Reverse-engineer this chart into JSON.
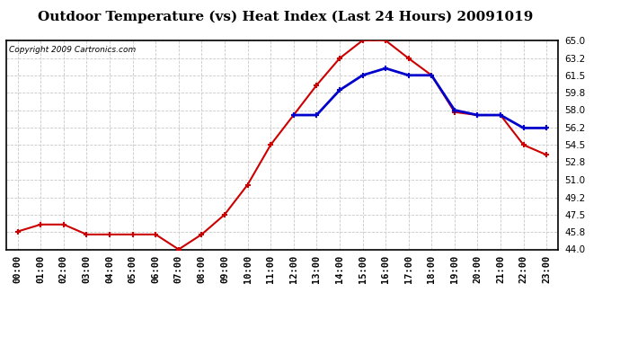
{
  "title": "Outdoor Temperature (vs) Heat Index (Last 24 Hours) 20091019",
  "copyright": "Copyright 2009 Cartronics.com",
  "x_labels": [
    "00:00",
    "01:00",
    "02:00",
    "03:00",
    "04:00",
    "05:00",
    "06:00",
    "07:00",
    "08:00",
    "09:00",
    "10:00",
    "11:00",
    "12:00",
    "13:00",
    "14:00",
    "15:00",
    "16:00",
    "17:00",
    "18:00",
    "19:00",
    "20:00",
    "21:00",
    "22:00",
    "23:00"
  ],
  "temp_data": [
    45.8,
    46.5,
    46.5,
    45.5,
    45.5,
    45.5,
    45.5,
    44.0,
    45.5,
    47.5,
    50.5,
    54.5,
    57.5,
    60.5,
    63.2,
    65.0,
    65.0,
    63.2,
    61.5,
    57.8,
    57.5,
    57.5,
    54.5,
    53.5
  ],
  "heat_data": [
    null,
    null,
    null,
    null,
    null,
    null,
    null,
    null,
    null,
    null,
    null,
    null,
    57.5,
    57.5,
    60.0,
    61.5,
    62.2,
    61.5,
    61.5,
    58.0,
    57.5,
    57.5,
    56.2,
    56.2
  ],
  "temp_color": "#cc0000",
  "heat_color": "#0000cc",
  "bg_color": "#ffffff",
  "grid_color": "#c8c8c8",
  "ylim_min": 44.0,
  "ylim_max": 65.0,
  "yticks": [
    44.0,
    45.8,
    47.5,
    49.2,
    51.0,
    52.8,
    54.5,
    56.2,
    58.0,
    59.8,
    61.5,
    63.2,
    65.0
  ],
  "title_fontsize": 11,
  "copyright_fontsize": 6.5,
  "tick_fontsize": 7.5
}
